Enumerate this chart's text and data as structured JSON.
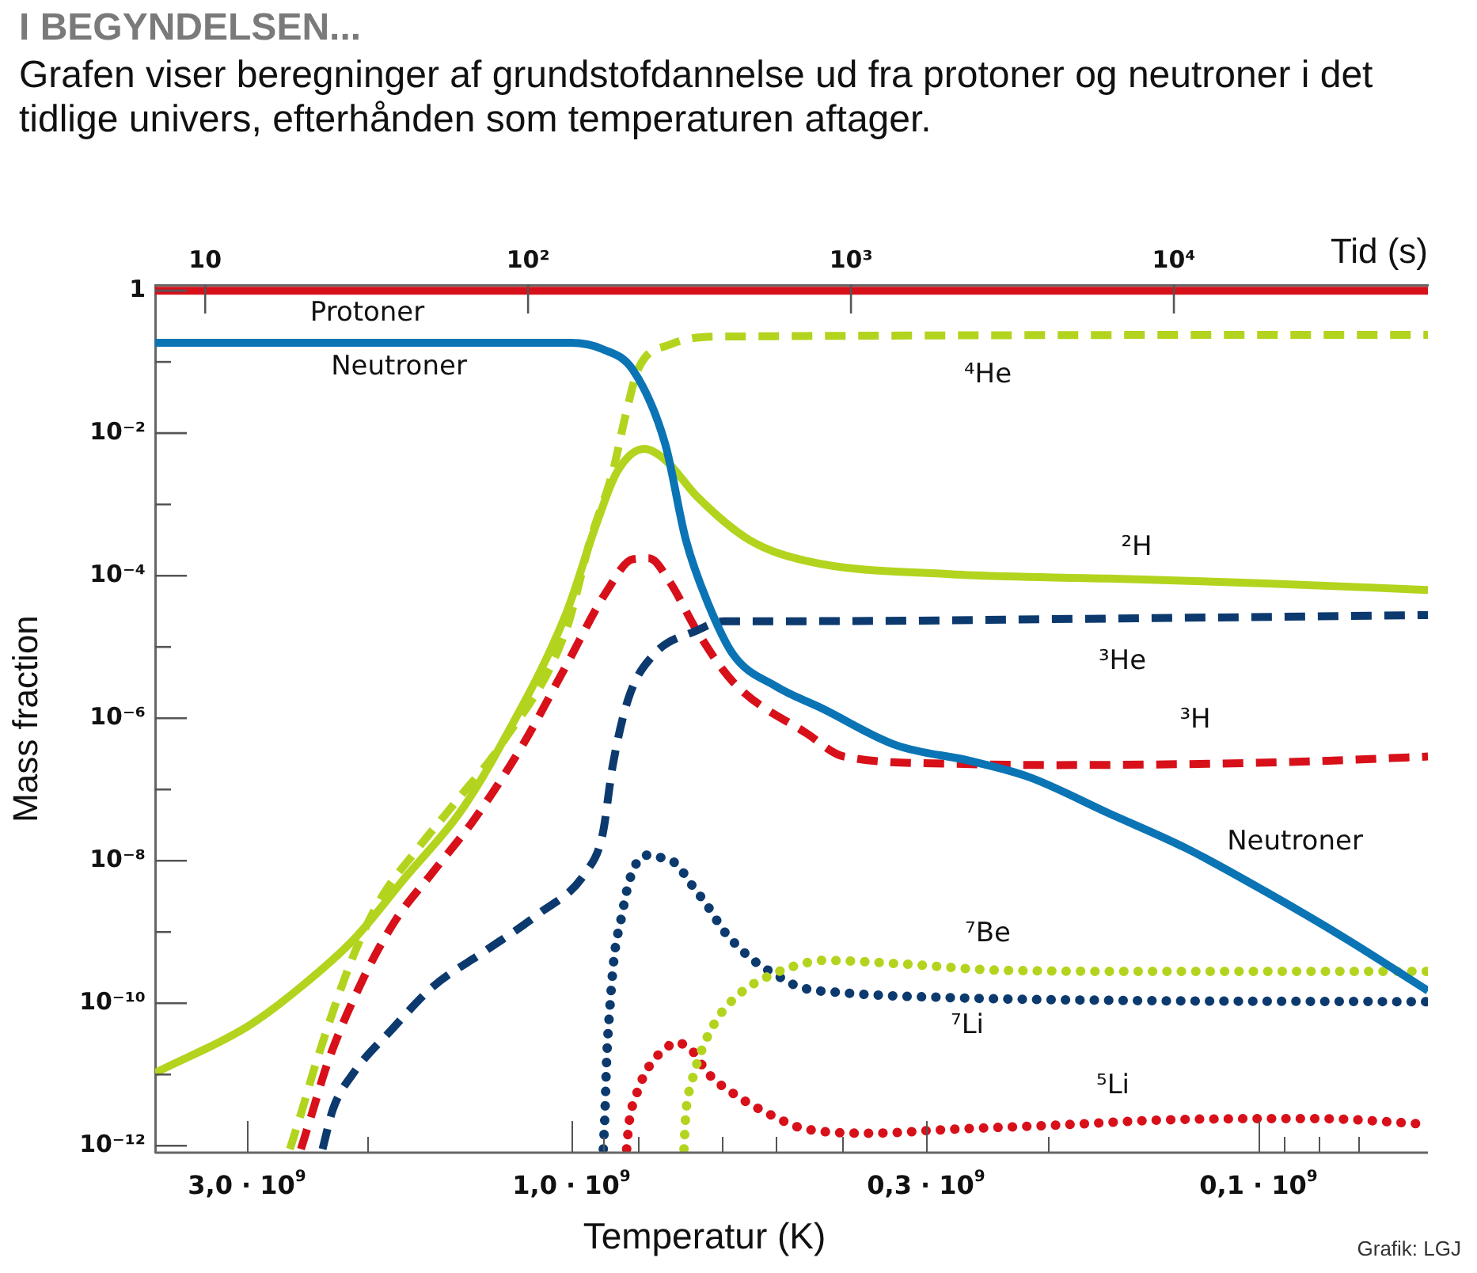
{
  "chart_data": {
    "type": "line",
    "title": "I BEGYNDELSEN...",
    "subtitle": "Grafen viser beregninger af grundstofdannelse ud fra protoner og neutroner i det tidlige univers, efterhånden som temperaturen aftager.",
    "xlabel": "Tid (s)",
    "ylabel": "Mass fraction",
    "log": "xy",
    "marker": "none",
    "xlim": [
      7.0,
      61200
    ],
    "xticks": [
      10,
      {
        "value": 100,
        "label": "10²"
      },
      {
        "value": 1000,
        "label": "10³"
      },
      {
        "value": 10000,
        "label": "10⁴"
      }
    ],
    "ylim": [
      8e-13,
      1.2
    ],
    "yticks": [
      1,
      {
        "value": 0.1,
        "label": null
      },
      {
        "value": 0.01,
        "label": "10⁻²"
      },
      {
        "value": 0.001,
        "label": null
      },
      {
        "value": 0.0001,
        "label": "10⁻⁴"
      },
      {
        "value": 1e-05,
        "label": null
      },
      {
        "value": 1e-06,
        "label": "10⁻⁶"
      },
      {
        "value": 1e-07,
        "label": null
      },
      {
        "value": 1e-08,
        "label": "10⁻⁸"
      },
      {
        "value": 1e-09,
        "label": null
      },
      {
        "value": 1e-10,
        "label": "10⁻¹⁰"
      },
      {
        "value": 1e-11,
        "label": null
      },
      {
        "value": 1e-12,
        "label": "10⁻¹²"
      }
    ],
    "series": [
      {
        "name": "Protoner",
        "color": "#d7101a",
        "line_style": "solid",
        "x": [
          7.0,
          61200
        ],
        "values": [
          1,
          1
        ]
      },
      {
        "name": "Neutroner",
        "color": "#0a74b5",
        "line_style": "solid",
        "x": [
          7.0,
          136,
          170,
          211,
          266,
          308,
          360,
          432,
          586,
          820,
          1376,
          2352,
          3551,
          6242,
          10900,
          19400,
          34000,
          61200
        ],
        "values": [
          0.185,
          0.185,
          0.151,
          0.0776,
          0.007,
          0.00032,
          4.2e-05,
          7.8e-06,
          2.8e-06,
          1.35e-06,
          4.2e-07,
          2.5e-07,
          1.5e-07,
          4.7e-08,
          1.5e-08,
          3.6e-09,
          8.1e-10,
          1.5e-10
        ]
      },
      {
        "name": "⁴He",
        "color": "#b3d41e",
        "line_style": "dashed",
        "x": [
          18.3,
          19.8,
          22.1,
          28.8,
          34.9,
          45.1,
          61.4,
          82.4,
          131,
          156,
          183,
          200,
          219,
          275,
          403,
          61200
        ],
        "values": [
          9e-13,
          2.8e-12,
          1.5e-11,
          4.7e-10,
          2.9e-09,
          1.4e-08,
          7.8e-08,
          4.2e-07,
          1.7e-05,
          0.00032,
          0.0029,
          0.017,
          0.078,
          0.175,
          0.227,
          0.24
        ]
      },
      {
        "name": "²H",
        "color": "#b3d41e",
        "line_style": "solid",
        "x": [
          7.0,
          13.7,
          19.8,
          28.8,
          41.9,
          61.4,
          82.4,
          131,
          163,
          189,
          229,
          266,
          333,
          483,
          734,
          2026,
          6242,
          19400,
          61200
        ],
        "values": [
          1.05e-11,
          4.9e-11,
          1.7e-10,
          7.8e-10,
          6e-09,
          4.7e-08,
          4.2e-07,
          2.9e-05,
          0.00054,
          0.0029,
          0.006,
          0.0042,
          0.0013,
          0.00032,
          0.00016,
          0.000105,
          9.1e-05,
          7.8e-05,
          6.3e-05
        ]
      },
      {
        "name": "³He",
        "color": "#0c3a6e",
        "line_style": "dashed",
        "x": [
          23.1,
          24.9,
          28.8,
          37.7,
          50.7,
          73.6,
          107,
          151,
          170,
          183,
          205,
          245,
          333,
          403,
          734,
          6242,
          61200
        ],
        "values": [
          9e-13,
          3.3e-12,
          1.05e-11,
          4.2e-11,
          1.7e-10,
          5.4e-10,
          1.75e-09,
          6.9e-09,
          2.3e-08,
          2.2e-07,
          1.95e-06,
          7.8e-06,
          1.7e-05,
          2.3e-05,
          2.3e-05,
          2.5e-05,
          2.8e-05
        ]
      },
      {
        "name": "³H",
        "color": "#d7101a",
        "line_style": "dashed",
        "x": [
          19.8,
          21.4,
          24.0,
          31.0,
          39.0,
          50.7,
          68.1,
          96.2,
          131,
          175,
          211,
          237,
          275,
          333,
          432,
          734,
          951,
          2026,
          4325,
          13300,
          28100,
          61200
        ],
        "values": [
          9e-13,
          2.8e-12,
          1.5e-11,
          2.3e-10,
          1.5e-09,
          6.9e-09,
          3.8e-08,
          4.2e-07,
          5.4e-06,
          6e-05,
          0.00017,
          0.000175,
          8.1e-05,
          1.7e-05,
          3.2e-06,
          6e-07,
          2.9e-07,
          2.3e-07,
          2.2e-07,
          2.3e-07,
          2.5e-07,
          2.9e-07
        ]
      },
      {
        "name": "⁷Be",
        "color": "#b3d41e",
        "line_style": "dotted",
        "x": [
          304,
          308,
          321,
          345,
          385,
          451,
          566,
          711,
          820,
          1394,
          2939,
          9147,
          61200
        ],
        "values": [
          9e-13,
          2.8e-12,
          7.7e-12,
          2.2e-11,
          6e-11,
          1.35e-10,
          2.5e-10,
          3.6e-10,
          4e-10,
          3.6e-10,
          2.9e-10,
          2.8e-10,
          2.8e-10
        ]
      },
      {
        "name": "⁷Li",
        "color": "#0c3a6e",
        "line_style": "dotted",
        "x": [
          171,
          173,
          175,
          179,
          185,
          194,
          205,
          219,
          237,
          259,
          287,
          321,
          360,
          403,
          451,
          506,
          586,
          691,
          951,
          2026,
          6242,
          61200
        ],
        "values": [
          9e-13,
          2.8e-12,
          1.5e-11,
          8.1e-11,
          4.7e-10,
          1.5e-09,
          4.9e-09,
          1e-08,
          1.2e-08,
          1.1e-08,
          9.1e-09,
          4.6e-09,
          2.3e-09,
          1.05e-09,
          6e-10,
          3.8e-10,
          2.5e-10,
          1.7e-10,
          1.4e-10,
          1.2e-10,
          1.1e-10,
          1.05e-10
        ]
      },
      {
        "name": "⁵Li",
        "color": "#d7101a",
        "line_style": "dotted",
        "x": [
          202,
          205,
          217,
          237,
          266,
          287,
          321,
          360,
          432,
          586,
          711,
          1155,
          2026,
          4325,
          9147,
          19400,
          28100,
          61200
        ],
        "values": [
          9e-13,
          1.95e-12,
          5.4e-12,
          1.3e-11,
          2.3e-11,
          2.8e-11,
          2.2e-11,
          1.05e-11,
          5.4e-12,
          2.5e-12,
          1.75e-12,
          1.5e-12,
          1.7e-12,
          1.95e-12,
          2.3e-12,
          2.4e-12,
          2.4e-12,
          2e-12
        ]
      }
    ],
    "annotations": [
      "Neutroner",
      "3,0 · 10$^{9}$",
      "1,0 · 10$^{9}$",
      "0,3 · 10$^{9}$",
      "0,1 · 10$^{9}$",
      "Temperatur (K)",
      "Grafik: LGJ"
    ]
  }
}
